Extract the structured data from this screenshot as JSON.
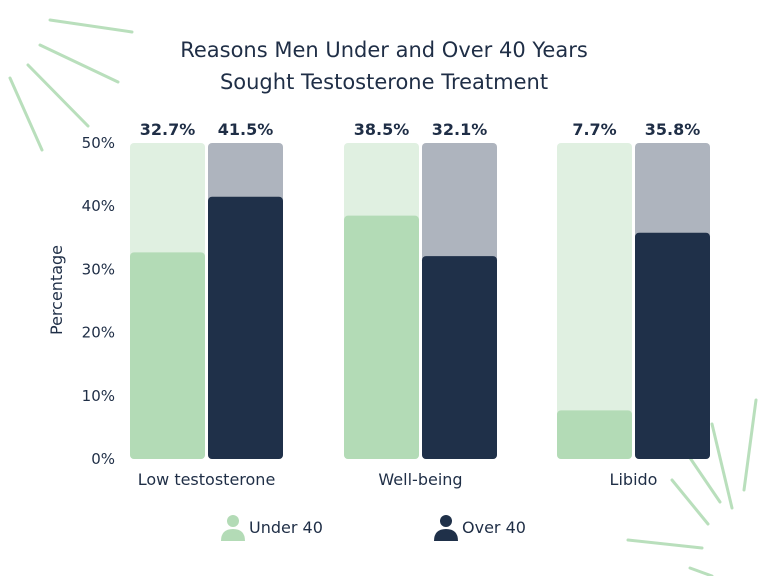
{
  "chart_data": {
    "type": "bar",
    "title_lines": [
      "Reasons Men Under and Over 40 Years",
      "Sought Testosterone Treatment"
    ],
    "ylabel": "Percentage",
    "xlabel": "",
    "ylim": [
      0,
      50
    ],
    "yticks": [
      "0%",
      "10%",
      "20%",
      "30%",
      "40%",
      "50%"
    ],
    "ytick_values": [
      0,
      10,
      20,
      30,
      40,
      50
    ],
    "categories": [
      "Low testosterone",
      "Well-being",
      "Libido"
    ],
    "series": [
      {
        "name": "Under 40",
        "values": [
          32.7,
          38.5,
          7.7
        ],
        "labels": [
          "32.7%",
          "38.5%",
          "7.7%"
        ],
        "color": "#b3dbb6",
        "track_color": "#e0f0e1"
      },
      {
        "name": "Over 40",
        "values": [
          41.5,
          32.1,
          35.8
        ],
        "labels": [
          "41.5%",
          "32.1%",
          "35.8%"
        ],
        "color": "#1f3049",
        "track_color": "#aeb4be"
      }
    ],
    "grid": false,
    "legend_position": "bottom",
    "decoration_color": "#b9dfbc"
  }
}
